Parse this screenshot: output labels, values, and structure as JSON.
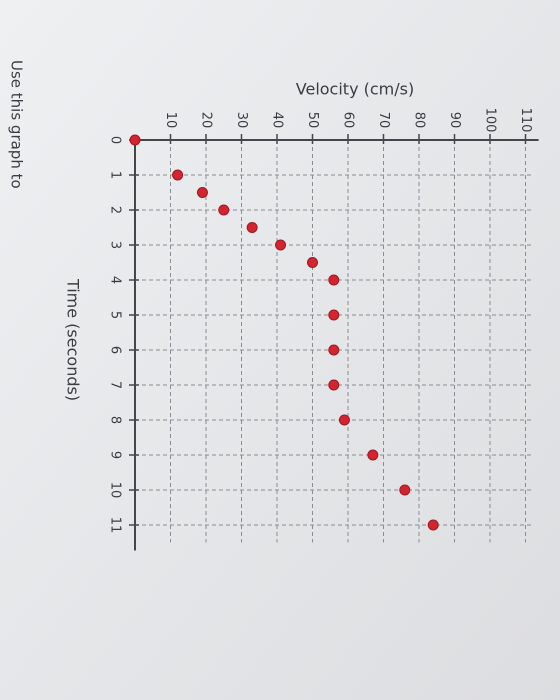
{
  "chart_data": {
    "type": "scatter",
    "x_label": "Time (seconds)",
    "y_label": "Velocity (cm/s)",
    "x": [
      0,
      1,
      1.5,
      2,
      2.5,
      3,
      3.5,
      4,
      5,
      6,
      7,
      8,
      9,
      10,
      11
    ],
    "values": [
      0,
      12,
      19,
      25,
      33,
      41,
      50,
      56,
      56,
      56,
      56,
      59,
      67,
      76,
      84
    ],
    "color": "#d3242f",
    "xlim": [
      0,
      11.5
    ],
    "ylim": [
      0,
      112
    ],
    "xticks": [
      0,
      1,
      2,
      3,
      4,
      5,
      6,
      7,
      8,
      9,
      10,
      11
    ],
    "yticks": [
      10,
      20,
      30,
      40,
      50,
      60,
      70,
      80,
      90,
      100,
      110
    ],
    "grid": true,
    "note": "Use this graph to"
  }
}
